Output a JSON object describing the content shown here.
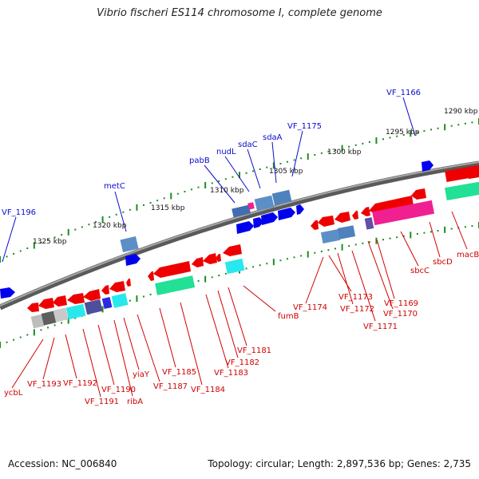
{
  "title": "Vibrio fischeri ES114 chromosome I, complete genome",
  "footer": {
    "accession": "Accession: NC_006840",
    "summary": "Topology: circular; Length: 2,897,536 bp; Genes: 2,735"
  },
  "colors": {
    "backbone": "#7a7a7a",
    "forward_label": "#0b0bd0",
    "reverse_label": "#d00000",
    "tick": "#1e8c1e",
    "forward_gene": "#0000ee",
    "reverse_gene": "#ee0000",
    "cds_steelblue": "#5b8fc6",
    "cds_cyan": "#28e8ee",
    "cds_green": "#22e095",
    "cds_magenta": "#f02090",
    "cds_purple": "#6050a8",
    "cds_gray": "#8a8a8a"
  },
  "scale": {
    "unit": "kbp",
    "outer_ticks": [
      "1325 kbp",
      "1320 kbp",
      "1315 kbp",
      "1310 kbp",
      "1305 kbp",
      "1300 kbp",
      "1295 kbp",
      "1290 kbp"
    ]
  },
  "forward_labels": [
    "VF_1196",
    "metC",
    "pabB",
    "nudL",
    "sdaC",
    "sdaA",
    "VF_1175",
    "VF_1166"
  ],
  "reverse_labels": [
    "ycbL",
    "VF_1193",
    "VF_1192",
    "VF_1191",
    "VF_1190",
    "ribA",
    "yiaY",
    "VF_1187",
    "VF_1185",
    "VF_1184",
    "VF_1183",
    "VF_1182",
    "VF_1181",
    "fumB",
    "VF_1174",
    "VF_1173",
    "VF_1172",
    "VF_1171",
    "VF_1170",
    "VF_1169",
    "sbcC",
    "sbcD",
    "macB"
  ]
}
